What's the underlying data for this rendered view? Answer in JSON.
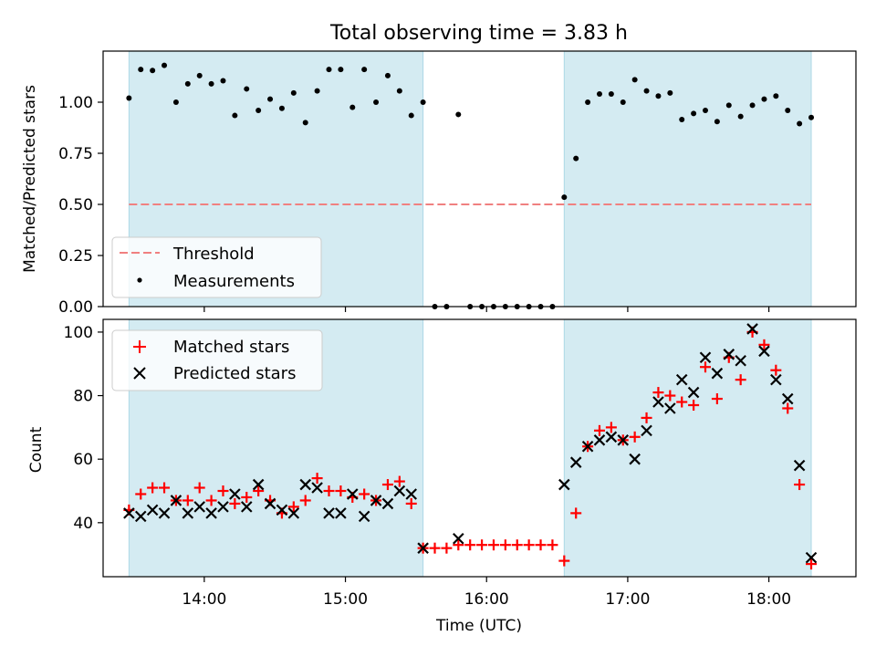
{
  "chart_data": {
    "type": "scatter",
    "title": "Total observing time = 3.83 h",
    "xlabel": "Time (UTC)",
    "xticks": [
      "14:00",
      "15:00",
      "16:00",
      "17:00",
      "18:00"
    ],
    "xlim": [
      "13:17",
      "18:37"
    ],
    "shaded_intervals": [
      [
        "13:28",
        "15:33"
      ],
      [
        "16:33",
        "18:18"
      ]
    ],
    "shade_color": "#add8e6",
    "panels": [
      {
        "ylabel": "Matched/Predicted stars",
        "ylim": [
          0,
          1.25
        ],
        "yticks": [
          "0.00",
          "0.25",
          "0.50",
          "0.75",
          "1.00"
        ],
        "legend_position": "lower-left",
        "threshold": {
          "name": "Threshold",
          "value": 0.5,
          "range": [
            "13:28",
            "18:18"
          ],
          "color": "#f08080",
          "style": "dashed"
        },
        "series": [
          {
            "name": "Measurements",
            "marker": "dot",
            "color": "#000000",
            "points": [
              [
                "13:28",
                1.02
              ],
              [
                "13:33",
                1.16
              ],
              [
                "13:38",
                1.155
              ],
              [
                "13:43",
                1.18
              ],
              [
                "13:48",
                1.0
              ],
              [
                "13:53",
                1.09
              ],
              [
                "13:58",
                1.13
              ],
              [
                "14:03",
                1.09
              ],
              [
                "14:08",
                1.105
              ],
              [
                "14:13",
                0.935
              ],
              [
                "14:18",
                1.065
              ],
              [
                "14:23",
                0.96
              ],
              [
                "14:28",
                1.015
              ],
              [
                "14:33",
                0.97
              ],
              [
                "14:38",
                1.045
              ],
              [
                "14:43",
                0.9
              ],
              [
                "14:48",
                1.055
              ],
              [
                "14:53",
                1.16
              ],
              [
                "14:58",
                1.16
              ],
              [
                "15:03",
                0.975
              ],
              [
                "15:08",
                1.16
              ],
              [
                "15:13",
                1.0
              ],
              [
                "15:18",
                1.13
              ],
              [
                "15:23",
                1.055
              ],
              [
                "15:28",
                0.935
              ],
              [
                "15:33",
                1.0
              ],
              [
                "15:38",
                0.0
              ],
              [
                "15:43",
                0.0
              ],
              [
                "15:48",
                0.94
              ],
              [
                "15:53",
                0.0
              ],
              [
                "15:58",
                0.0
              ],
              [
                "16:03",
                0.0
              ],
              [
                "16:08",
                0.0
              ],
              [
                "16:13",
                0.0
              ],
              [
                "16:18",
                0.0
              ],
              [
                "16:23",
                0.0
              ],
              [
                "16:28",
                0.0
              ],
              [
                "16:33",
                0.535
              ],
              [
                "16:38",
                0.725
              ],
              [
                "16:43",
                1.0
              ],
              [
                "16:48",
                1.04
              ],
              [
                "16:53",
                1.04
              ],
              [
                "16:58",
                1.0
              ],
              [
                "17:03",
                1.11
              ],
              [
                "17:08",
                1.055
              ],
              [
                "17:13",
                1.03
              ],
              [
                "17:18",
                1.045
              ],
              [
                "17:23",
                0.915
              ],
              [
                "17:28",
                0.945
              ],
              [
                "17:33",
                0.96
              ],
              [
                "17:38",
                0.905
              ],
              [
                "17:43",
                0.985
              ],
              [
                "17:48",
                0.93
              ],
              [
                "17:53",
                0.985
              ],
              [
                "17:58",
                1.015
              ],
              [
                "18:03",
                1.03
              ],
              [
                "18:08",
                0.96
              ],
              [
                "18:13",
                0.895
              ],
              [
                "18:18",
                0.925
              ]
            ]
          }
        ]
      },
      {
        "ylabel": "Count",
        "ylim": [
          23,
          104
        ],
        "yticks": [
          "40",
          "60",
          "80",
          "100"
        ],
        "legend_position": "upper-left",
        "series": [
          {
            "name": "Matched stars",
            "marker": "plus",
            "color": "#ff0000",
            "points": [
              [
                "13:28",
                44
              ],
              [
                "13:33",
                49
              ],
              [
                "13:38",
                51
              ],
              [
                "13:43",
                51
              ],
              [
                "13:48",
                47
              ],
              [
                "13:53",
                47
              ],
              [
                "13:58",
                51
              ],
              [
                "14:03",
                47
              ],
              [
                "14:08",
                50
              ],
              [
                "14:13",
                46
              ],
              [
                "14:18",
                48
              ],
              [
                "14:23",
                50
              ],
              [
                "14:28",
                47
              ],
              [
                "14:33",
                43
              ],
              [
                "14:38",
                45
              ],
              [
                "14:43",
                47
              ],
              [
                "14:48",
                54
              ],
              [
                "14:53",
                50
              ],
              [
                "14:58",
                50
              ],
              [
                "15:03",
                48
              ],
              [
                "15:08",
                49
              ],
              [
                "15:13",
                47
              ],
              [
                "15:18",
                52
              ],
              [
                "15:23",
                53
              ],
              [
                "15:28",
                46
              ],
              [
                "15:33",
                32
              ],
              [
                "15:38",
                32
              ],
              [
                "15:43",
                32
              ],
              [
                "15:48",
                33
              ],
              [
                "15:53",
                33
              ],
              [
                "15:58",
                33
              ],
              [
                "16:03",
                33
              ],
              [
                "16:08",
                33
              ],
              [
                "16:13",
                33
              ],
              [
                "16:18",
                33
              ],
              [
                "16:23",
                33
              ],
              [
                "16:28",
                33
              ],
              [
                "16:33",
                28
              ],
              [
                "16:38",
                43
              ],
              [
                "16:43",
                64
              ],
              [
                "16:48",
                69
              ],
              [
                "16:53",
                70
              ],
              [
                "16:58",
                66
              ],
              [
                "17:03",
                67
              ],
              [
                "17:08",
                73
              ],
              [
                "17:13",
                81
              ],
              [
                "17:18",
                80
              ],
              [
                "17:23",
                78
              ],
              [
                "17:28",
                77
              ],
              [
                "17:33",
                89
              ],
              [
                "17:38",
                79
              ],
              [
                "17:43",
                92
              ],
              [
                "17:48",
                85
              ],
              [
                "17:53",
                100
              ],
              [
                "17:58",
                96
              ],
              [
                "18:03",
                88
              ],
              [
                "18:08",
                76
              ],
              [
                "18:13",
                52
              ],
              [
                "18:18",
                27
              ]
            ]
          },
          {
            "name": "Predicted stars",
            "marker": "x",
            "color": "#000000",
            "points": [
              [
                "13:28",
                43
              ],
              [
                "13:33",
                42
              ],
              [
                "13:38",
                44
              ],
              [
                "13:43",
                43
              ],
              [
                "13:48",
                47
              ],
              [
                "13:53",
                43
              ],
              [
                "13:58",
                45
              ],
              [
                "14:03",
                43
              ],
              [
                "14:08",
                45
              ],
              [
                "14:13",
                49
              ],
              [
                "14:18",
                45
              ],
              [
                "14:23",
                52
              ],
              [
                "14:28",
                46
              ],
              [
                "14:33",
                44
              ],
              [
                "14:38",
                43
              ],
              [
                "14:43",
                52
              ],
              [
                "14:48",
                51
              ],
              [
                "14:53",
                43
              ],
              [
                "14:58",
                43
              ],
              [
                "15:03",
                49
              ],
              [
                "15:08",
                42
              ],
              [
                "15:13",
                47
              ],
              [
                "15:18",
                46
              ],
              [
                "15:23",
                50
              ],
              [
                "15:28",
                49
              ],
              [
                "15:33",
                32
              ],
              [
                "15:48",
                35
              ],
              [
                "16:33",
                52
              ],
              [
                "16:38",
                59
              ],
              [
                "16:43",
                64
              ],
              [
                "16:48",
                66
              ],
              [
                "16:53",
                67
              ],
              [
                "16:58",
                66
              ],
              [
                "17:03",
                60
              ],
              [
                "17:08",
                69
              ],
              [
                "17:13",
                78
              ],
              [
                "17:18",
                76
              ],
              [
                "17:23",
                85
              ],
              [
                "17:28",
                81
              ],
              [
                "17:33",
                92
              ],
              [
                "17:38",
                87
              ],
              [
                "17:43",
                93
              ],
              [
                "17:48",
                91
              ],
              [
                "17:53",
                101
              ],
              [
                "17:58",
                94
              ],
              [
                "18:03",
                85
              ],
              [
                "18:08",
                79
              ],
              [
                "18:13",
                58
              ],
              [
                "18:18",
                29
              ]
            ]
          }
        ]
      }
    ]
  }
}
